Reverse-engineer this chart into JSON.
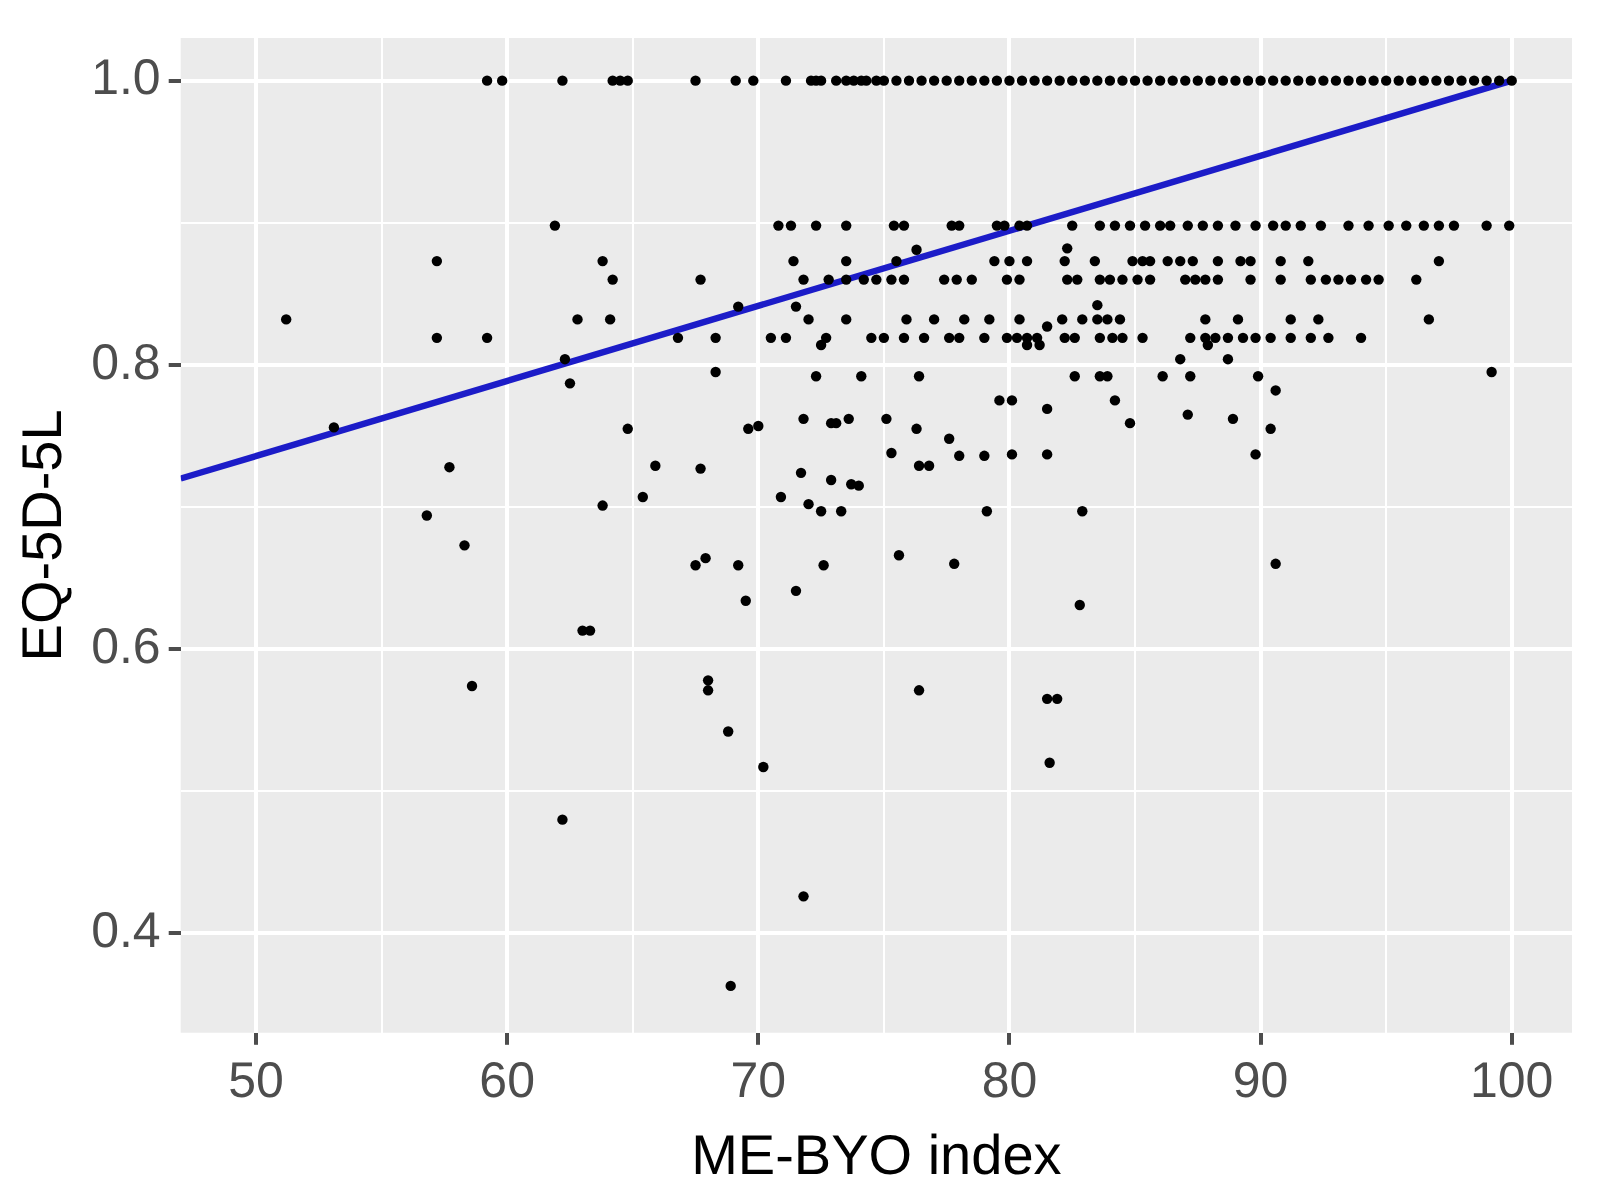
{
  "chart_data": {
    "type": "scatter",
    "xlabel": "ME-BYO index",
    "ylabel": "EQ-5D-5L",
    "xlim": [
      47,
      102.4
    ],
    "ylim": [
      0.33,
      1.03
    ],
    "xticks": [
      50,
      {
        "value": 55,
        "label": null
      },
      60,
      {
        "value": 65,
        "label": null
      },
      70,
      {
        "value": 75,
        "label": null
      },
      80,
      {
        "value": 85,
        "label": null
      },
      90,
      {
        "value": 95,
        "label": null
      },
      100
    ],
    "yticks": [
      {
        "value": 0.4,
        "label": "0.4"
      },
      {
        "value": 0.5,
        "label": null
      },
      {
        "value": 0.6,
        "label": "0.6"
      },
      {
        "value": 0.7,
        "label": null
      },
      {
        "value": 0.8,
        "label": "0.8"
      },
      {
        "value": 0.9,
        "label": null
      },
      {
        "value": 1,
        "label": "1.0"
      }
    ],
    "grid": true,
    "legend": false,
    "marker": "circle",
    "series": [
      {
        "color": "#000000",
        "x": [
          59.2,
          59.8,
          62.2,
          64.2,
          64.5,
          64.8,
          67.5,
          69.1,
          69.8,
          71.1,
          72.1,
          72.3,
          72.5,
          73.1,
          73.5,
          73.8,
          74.1,
          74.3,
          74.7,
          75.0,
          75.5,
          76,
          76.5,
          77,
          77.5,
          78,
          78.5,
          79,
          79.5,
          80,
          80.5,
          81,
          81.5,
          82,
          82.5,
          83,
          83.5,
          84,
          84.5,
          85,
          85.5,
          86,
          86.5,
          87,
          87.5,
          88,
          88.5,
          89,
          89.5,
          90,
          90.5,
          91,
          91.5,
          92,
          92.5,
          93,
          93.5,
          94,
          94.5,
          95,
          95.5,
          96,
          96.5,
          97,
          97.5,
          98,
          98.5,
          99,
          99.5,
          100
        ],
        "values": [
          1,
          1,
          1,
          1,
          1,
          1,
          1,
          1,
          1,
          1,
          1,
          1,
          1,
          1,
          1,
          1,
          1,
          1,
          1,
          1,
          1,
          1,
          1,
          1,
          1,
          1,
          1,
          1,
          1,
          1,
          1,
          1,
          1,
          1,
          1,
          1,
          1,
          1,
          1,
          1,
          1,
          1,
          1,
          1,
          1,
          1,
          1,
          1,
          1,
          1,
          1,
          1,
          1,
          1,
          1,
          1,
          1,
          1,
          1,
          1,
          1,
          1,
          1,
          1,
          1,
          1,
          1,
          1,
          1,
          1
        ]
      },
      {
        "color": "#000000",
        "x": [
          61.9,
          70.8,
          71.3,
          72.3,
          73.5,
          75.4,
          75.8,
          77.7,
          78.0,
          79.5,
          79.8,
          80.4,
          80.7,
          82.5,
          83.6,
          84.2,
          84.8,
          85.4,
          86.0,
          86.4,
          87.1,
          87.7,
          88.3,
          89.0,
          89.8,
          90.5,
          91.0,
          91.6,
          92.4,
          93.5,
          94.3,
          95.1,
          95.8,
          96.5,
          97.1,
          97.7,
          99.0,
          99.9
        ],
        "values": [
          0.898,
          0.898,
          0.898,
          0.898,
          0.898,
          0.898,
          0.898,
          0.898,
          0.898,
          0.898,
          0.898,
          0.898,
          0.898,
          0.898,
          0.898,
          0.898,
          0.898,
          0.898,
          0.898,
          0.898,
          0.898,
          0.898,
          0.898,
          0.898,
          0.898,
          0.898,
          0.898,
          0.898,
          0.898,
          0.898,
          0.898,
          0.898,
          0.898,
          0.898,
          0.898,
          0.898,
          0.898,
          0.898
        ]
      },
      {
        "color": "#000000",
        "x": [
          57.2,
          63.8,
          71.4,
          73.5,
          75.5,
          79.4,
          80.0,
          80.7,
          82.2,
          83.4,
          84.9,
          85.3,
          85.6,
          86.3,
          86.8,
          87.3,
          88.3,
          89.2,
          89.6,
          90.8,
          91.9,
          97.1
        ],
        "values": [
          0.873,
          0.873,
          0.873,
          0.873,
          0.873,
          0.873,
          0.873,
          0.873,
          0.873,
          0.873,
          0.873,
          0.873,
          0.873,
          0.873,
          0.873,
          0.873,
          0.873,
          0.873,
          0.873,
          0.873,
          0.873,
          0.873
        ]
      },
      {
        "color": "#000000",
        "x": [
          64.2,
          67.7,
          71.8,
          72.8,
          73.5,
          74.2,
          74.7,
          75.3,
          75.8,
          77.4,
          77.9,
          78.5,
          79.9,
          80.4,
          82.3,
          82.7,
          83.6,
          84.0,
          84.5,
          85.1,
          85.6,
          87.0,
          87.4,
          87.8,
          88.3,
          89.6,
          90.8,
          92.0,
          92.6,
          93.1,
          93.6,
          94.2,
          94.7,
          96.2
        ],
        "values": [
          0.86,
          0.86,
          0.86,
          0.86,
          0.86,
          0.86,
          0.86,
          0.86,
          0.86,
          0.86,
          0.86,
          0.86,
          0.86,
          0.86,
          0.86,
          0.86,
          0.86,
          0.86,
          0.86,
          0.86,
          0.86,
          0.86,
          0.86,
          0.86,
          0.86,
          0.86,
          0.86,
          0.86,
          0.86,
          0.86,
          0.86,
          0.86,
          0.86,
          0.86
        ]
      },
      {
        "color": "#000000",
        "x": [
          51.2,
          62.8,
          64.1,
          72.0,
          73.5,
          75.9,
          77.0,
          78.2,
          79.2,
          80.4,
          82.1,
          82.9,
          83.5,
          83.9,
          84.4,
          87.8,
          89.1,
          91.2,
          92.3,
          96.7
        ],
        "values": [
          0.832,
          0.832,
          0.832,
          0.832,
          0.832,
          0.832,
          0.832,
          0.832,
          0.832,
          0.832,
          0.832,
          0.832,
          0.832,
          0.832,
          0.832,
          0.832,
          0.832,
          0.832,
          0.832,
          0.832
        ]
      },
      {
        "color": "#000000",
        "x": [
          57.2,
          59.2,
          66.8,
          68.3,
          70.5,
          71.1,
          72.7,
          74.5,
          75.0,
          75.8,
          76.6,
          77.6,
          78.0,
          79.0,
          79.9,
          80.3,
          80.7,
          81.1,
          82.2,
          82.6,
          83.6,
          84.1,
          84.5,
          85.3,
          87.2,
          87.8,
          88.2,
          88.7,
          89.3,
          89.8,
          90.4,
          91.2,
          92.0,
          92.7,
          94.0
        ],
        "values": [
          0.819,
          0.819,
          0.819,
          0.819,
          0.819,
          0.819,
          0.819,
          0.819,
          0.819,
          0.819,
          0.819,
          0.819,
          0.819,
          0.819,
          0.819,
          0.819,
          0.819,
          0.819,
          0.819,
          0.819,
          0.819,
          0.819,
          0.819,
          0.819,
          0.819,
          0.819,
          0.819,
          0.819,
          0.819,
          0.819,
          0.819,
          0.819,
          0.819,
          0.819,
          0.819
        ]
      },
      {
        "color": "#000000",
        "x": [
          62.3,
          62.5,
          53.1,
          57.7,
          64.8,
          65.9,
          67.7,
          68.3,
          69.2,
          69.6,
          70.0,
          71.5,
          72.5,
          72.3,
          74.1,
          71.8,
          72.9,
          73.6,
          71.7,
          72.9,
          73.7
        ],
        "values": [
          0.804,
          0.787,
          0.756,
          0.728,
          0.755,
          0.729,
          0.727,
          0.795,
          0.841,
          0.755,
          0.757,
          0.841,
          0.814,
          0.792,
          0.792,
          0.762,
          0.759,
          0.762,
          0.724,
          0.719,
          0.716
        ]
      },
      {
        "color": "#000000",
        "x": [
          76.3,
          82.3,
          83.5,
          81.5,
          80.7,
          81.2,
          87.9,
          86.8,
          88.7,
          76.4,
          82.6,
          83.6,
          83.9,
          86.1,
          87.2,
          89.9,
          99.2,
          90.6,
          79.6,
          80.1,
          81.5,
          84.2,
          73.1,
          75.1,
          76.3,
          84.8,
          87.1,
          88.9,
          90.4,
          75.3,
          77.6,
          78.0,
          79.0,
          80.1,
          81.5,
          76.4,
          76.8,
          89.8
        ],
        "values": [
          0.881,
          0.882,
          0.842,
          0.827,
          0.814,
          0.814,
          0.814,
          0.804,
          0.804,
          0.792,
          0.792,
          0.792,
          0.792,
          0.792,
          0.792,
          0.792,
          0.795,
          0.782,
          0.775,
          0.775,
          0.769,
          0.775,
          0.759,
          0.762,
          0.755,
          0.759,
          0.765,
          0.762,
          0.755,
          0.738,
          0.748,
          0.736,
          0.736,
          0.737,
          0.737,
          0.729,
          0.729,
          0.737
        ]
      },
      {
        "color": "#000000",
        "x": [
          56.8,
          63.8,
          65.4,
          70.9,
          72.0,
          72.5,
          73.3,
          58.3,
          67.5,
          67.9,
          69.2,
          72.6,
          69.5,
          71.5,
          63.0,
          63.3,
          58.6,
          68.0,
          68.0,
          68.8,
          70.2,
          62.2,
          71.8,
          68.9
        ],
        "values": [
          0.694,
          0.701,
          0.707,
          0.707,
          0.702,
          0.697,
          0.697,
          0.673,
          0.659,
          0.664,
          0.659,
          0.659,
          0.634,
          0.641,
          0.613,
          0.613,
          0.574,
          0.578,
          0.571,
          0.542,
          0.517,
          0.48,
          0.426,
          0.363
        ]
      },
      {
        "color": "#000000",
        "x": [
          74.0,
          79.1,
          82.9,
          75.6,
          77.8,
          90.6,
          82.8,
          76.4,
          81.5,
          81.9,
          81.6
        ],
        "values": [
          0.715,
          0.697,
          0.697,
          0.666,
          0.66,
          0.66,
          0.631,
          0.571,
          0.565,
          0.565,
          0.52
        ]
      },
      {
        "type": "line",
        "color": "#1c1cc8",
        "marker": "none",
        "x": [
          47,
          100
        ],
        "values": [
          0.72,
          1.0
        ]
      }
    ]
  }
}
